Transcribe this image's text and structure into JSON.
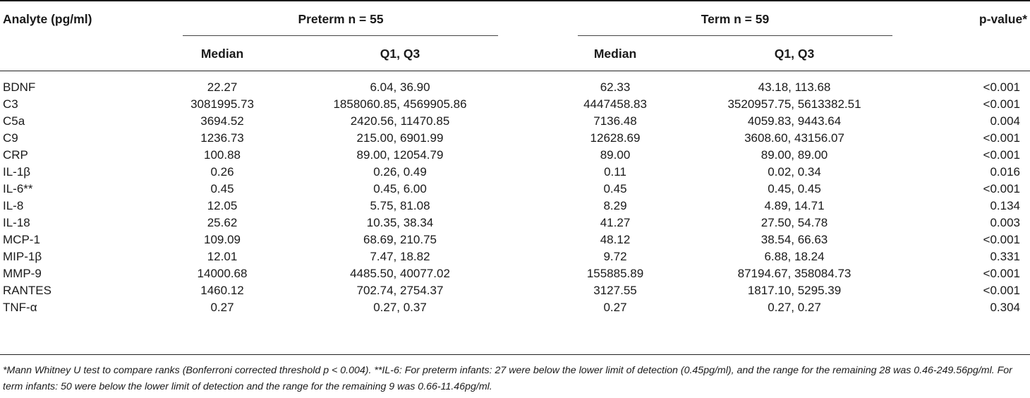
{
  "table": {
    "headers": {
      "analyte": "Analyte (pg/ml)",
      "preterm_group": "Preterm n = 55",
      "term_group": "Term n = 59",
      "p_value": "p-value*",
      "median": "Median",
      "q1q3": "Q1, Q3"
    },
    "rows": [
      {
        "analyte": "BDNF",
        "pre_median": "22.27",
        "pre_q": "6.04, 36.90",
        "term_median": "62.33",
        "term_q": "43.18, 113.68",
        "p": "<0.001"
      },
      {
        "analyte": "C3",
        "pre_median": "3081995.73",
        "pre_q": "1858060.85, 4569905.86",
        "term_median": "4447458.83",
        "term_q": "3520957.75, 5613382.51",
        "p": "<0.001"
      },
      {
        "analyte": "C5a",
        "pre_median": "3694.52",
        "pre_q": "2420.56, 11470.85",
        "term_median": "7136.48",
        "term_q": "4059.83, 9443.64",
        "p": "0.004"
      },
      {
        "analyte": "C9",
        "pre_median": "1236.73",
        "pre_q": "215.00, 6901.99",
        "term_median": "12628.69",
        "term_q": "3608.60, 43156.07",
        "p": "<0.001"
      },
      {
        "analyte": "CRP",
        "pre_median": "100.88",
        "pre_q": "89.00, 12054.79",
        "term_median": "89.00",
        "term_q": "89.00, 89.00",
        "p": "<0.001"
      },
      {
        "analyte": "IL-1β",
        "pre_median": "0.26",
        "pre_q": "0.26, 0.49",
        "term_median": "0.11",
        "term_q": "0.02, 0.34",
        "p": "0.016"
      },
      {
        "analyte": "IL-6**",
        "pre_median": "0.45",
        "pre_q": "0.45, 6.00",
        "term_median": "0.45",
        "term_q": "0.45, 0.45",
        "p": "<0.001"
      },
      {
        "analyte": "IL-8",
        "pre_median": "12.05",
        "pre_q": "5.75, 81.08",
        "term_median": "8.29",
        "term_q": "4.89, 14.71",
        "p": "0.134"
      },
      {
        "analyte": "IL-18",
        "pre_median": "25.62",
        "pre_q": "10.35, 38.34",
        "term_median": "41.27",
        "term_q": "27.50, 54.78",
        "p": "0.003"
      },
      {
        "analyte": "MCP-1",
        "pre_median": "109.09",
        "pre_q": "68.69, 210.75",
        "term_median": "48.12",
        "term_q": "38.54, 66.63",
        "p": "<0.001"
      },
      {
        "analyte": "MIP-1β",
        "pre_median": "12.01",
        "pre_q": "7.47, 18.82",
        "term_median": "9.72",
        "term_q": "6.88, 18.24",
        "p": "0.331"
      },
      {
        "analyte": "MMP-9",
        "pre_median": "14000.68",
        "pre_q": "4485.50, 40077.02",
        "term_median": "155885.89",
        "term_q": "87194.67, 358084.73",
        "p": "<0.001"
      },
      {
        "analyte": "RANTES",
        "pre_median": "1460.12",
        "pre_q": "702.74, 2754.37",
        "term_median": "3127.55",
        "term_q": "1817.10, 5295.39",
        "p": "<0.001"
      },
      {
        "analyte": "TNF-α",
        "pre_median": "0.27",
        "pre_q": "0.27, 0.37",
        "term_median": "0.27",
        "term_q": "0.27, 0.27",
        "p": "0.304"
      }
    ],
    "footnote": "*Mann Whitney U test to compare ranks (Bonferroni corrected threshold p < 0.004). **IL-6: For preterm infants: 27 were below the lower limit of detection (0.45pg/ml), and the range for the remaining 28 was 0.46-249.56pg/ml. For term infants: 50 were below the lower limit of detection and the range for the remaining 9 was 0.66-11.46pg/ml."
  }
}
